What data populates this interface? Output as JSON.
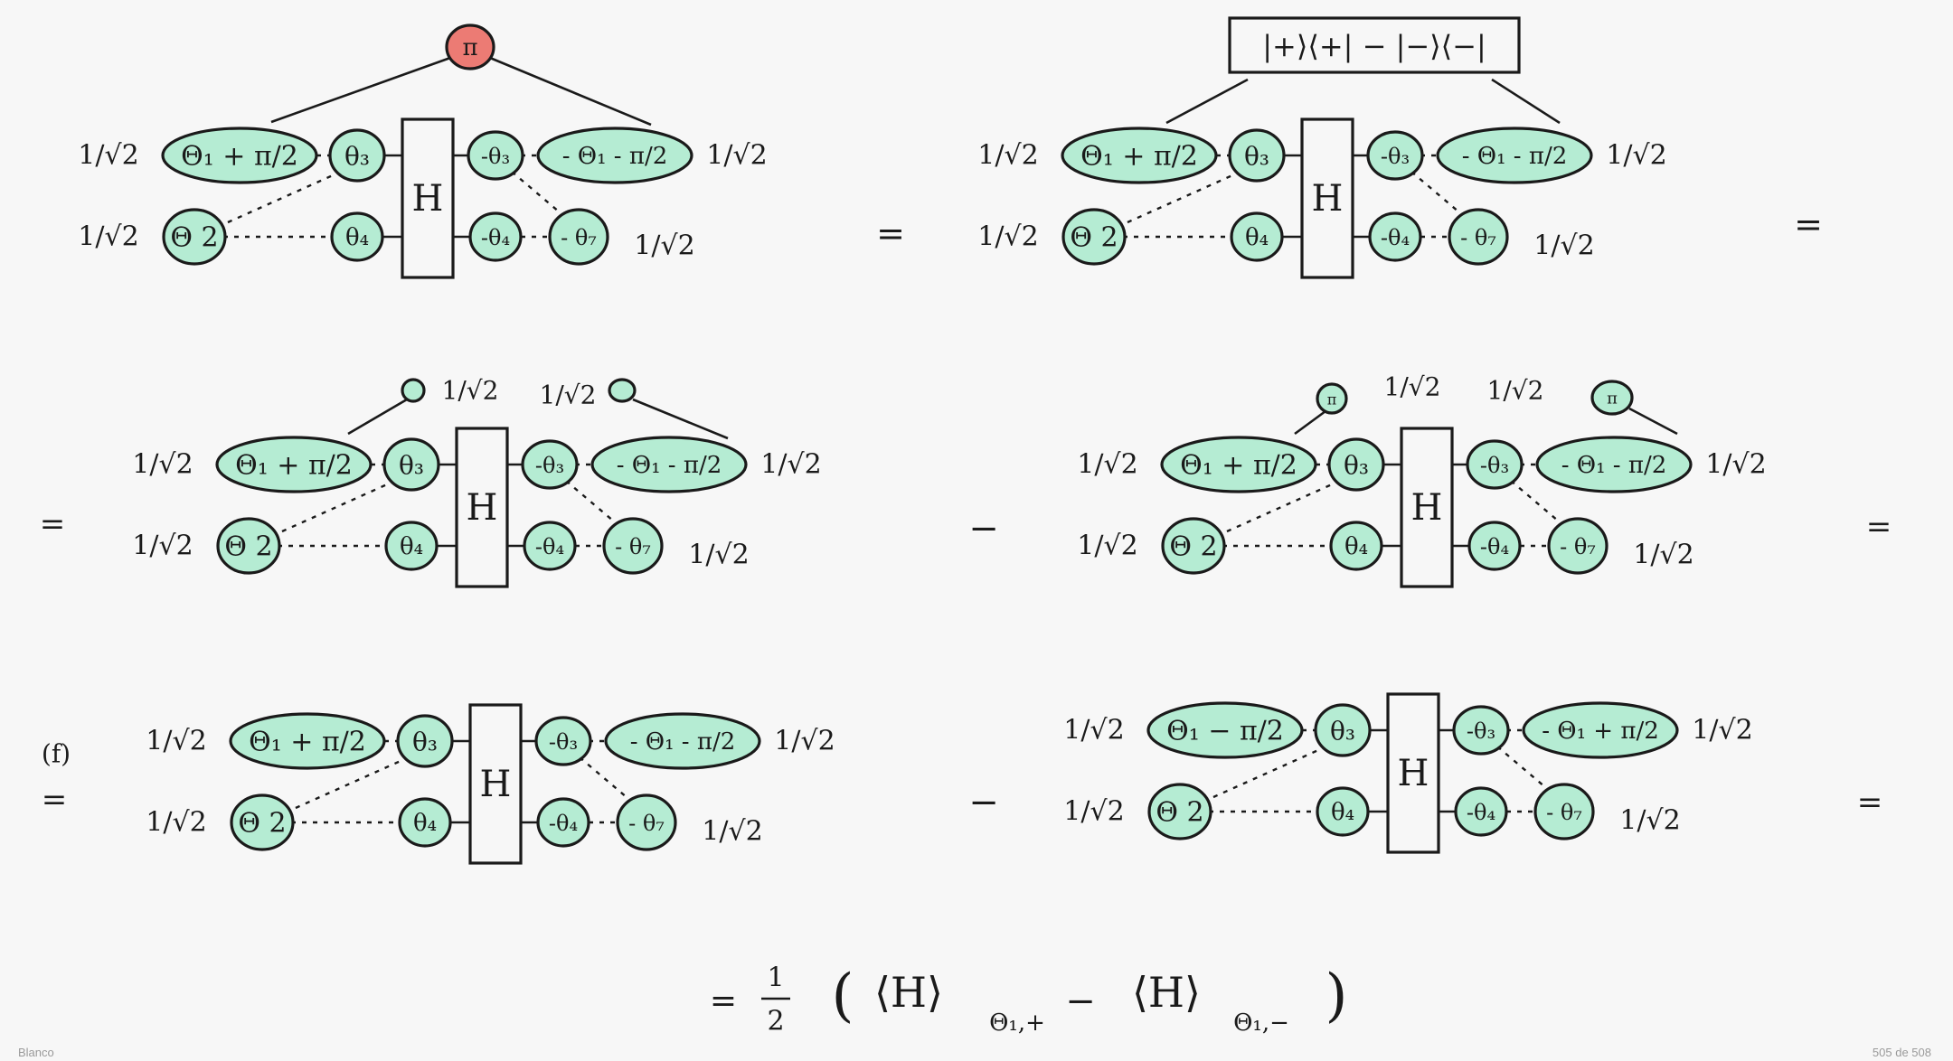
{
  "document": {
    "footer_left": "Blanco",
    "page_indicator": "505 de 508"
  },
  "symbols": {
    "norm": "1/√2",
    "equals": "=",
    "minus": "−",
    "note_f": "(f)"
  },
  "top_bar": {
    "red_node": "π",
    "projector_box": "|+⟩⟨+| − |−⟩⟨−|"
  },
  "middle_row": {
    "left_phase": "",
    "right_phase": "π"
  },
  "diagram_nodes": {
    "n1": "Θ₁ + π/2",
    "n1_minus": "Θ₁ − π/2",
    "n3": "θ₃",
    "n2": "Θ 2",
    "n4": "θ₄",
    "h": "H",
    "m3": "-θ₃",
    "m1": "- Θ₁ - π/2",
    "m1_plus": "- Θ₁ + π/2",
    "m4": "-θ₄",
    "m7": "- θ₇"
  },
  "final_expression": {
    "lhs": "=",
    "half_num": "1",
    "half_den": "2",
    "open": "(",
    "bra1": "⟨H⟩",
    "sub1": "Θ₁,+",
    "minus": "−",
    "bra2": "⟨H⟩",
    "sub2": "Θ₁,−",
    "close": ")"
  }
}
